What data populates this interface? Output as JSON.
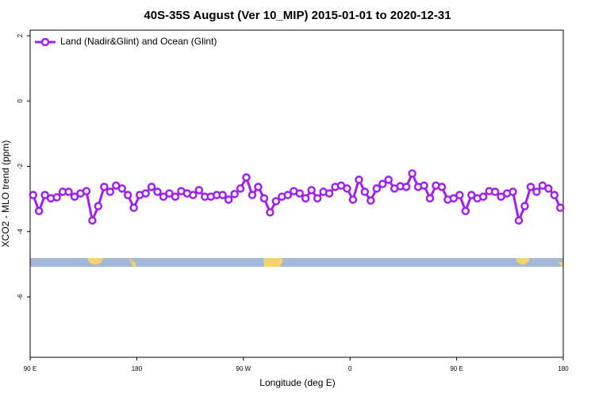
{
  "chart_data": {
    "type": "line",
    "title": "40S-35S August (Ver 10_MIP)   2015-01-01 to 2020-12-31",
    "xlabel": "Longitude (deg E)",
    "ylabel": "XCO2 - MLO trend (ppm)",
    "x": [
      92.5,
      97.5,
      102.5,
      107.5,
      112.5,
      117.5,
      122.5,
      127.5,
      132.5,
      137.5,
      142.5,
      147.5,
      152.5,
      157.5,
      162.5,
      167.5,
      172.5,
      177.5,
      182.5,
      187.5,
      192.5,
      197.5,
      202.5,
      207.5,
      212.5,
      217.5,
      222.5,
      227.5,
      232.5,
      237.5,
      242.5,
      247.5,
      252.5,
      257.5,
      262.5,
      267.5,
      272.5,
      277.5,
      282.5,
      287.5,
      292.5,
      297.5,
      302.5,
      307.5,
      312.5,
      317.5,
      322.5,
      327.5,
      332.5,
      337.5,
      342.5,
      347.5,
      352.5,
      357.5,
      362.5,
      367.5,
      372.5,
      377.5,
      382.5,
      387.5,
      392.5,
      397.5,
      402.5,
      407.5,
      412.5,
      417.5,
      422.5,
      427.5,
      432.5,
      437.5,
      442.5,
      447.5,
      452.5,
      457.5,
      462.5,
      467.5,
      472.5,
      477.5,
      482.5,
      487.5,
      492.5,
      497.5,
      502.5,
      507.5,
      512.5,
      517.5,
      522.5,
      527.5,
      532.5,
      537.5
    ],
    "series": [
      {
        "name": "Land (Nadir&Glint) and Ocean (Glint)",
        "color": "#a020f0",
        "values": [
          -2.88,
          -3.37,
          -2.88,
          -2.98,
          -2.95,
          -2.78,
          -2.78,
          -2.93,
          -2.83,
          -2.76,
          -3.66,
          -3.22,
          -2.63,
          -2.78,
          -2.59,
          -2.68,
          -2.88,
          -3.27,
          -2.88,
          -2.83,
          -2.63,
          -2.78,
          -2.93,
          -2.83,
          -2.93,
          -2.76,
          -2.83,
          -2.88,
          -2.73,
          -2.93,
          -2.93,
          -2.88,
          -2.88,
          -3.02,
          -2.85,
          -2.68,
          -2.34,
          -2.88,
          -2.63,
          -2.98,
          -3.41,
          -3.07,
          -2.93,
          -2.88,
          -2.76,
          -2.83,
          -2.98,
          -2.73,
          -2.98,
          -2.78,
          -2.83,
          -2.63,
          -2.59,
          -2.68,
          -3.02,
          -2.41,
          -2.78,
          -3.05,
          -2.68,
          -2.54,
          -2.41,
          -2.68,
          -2.61,
          -2.63,
          -2.22,
          -2.63,
          -2.59,
          -2.98,
          -2.59,
          -2.63,
          -3.02,
          -2.98,
          -2.88,
          -3.37,
          -2.88,
          -2.98,
          -2.93,
          -2.76,
          -2.78,
          -2.93,
          -2.83,
          -2.78,
          -3.66,
          -3.22,
          -2.63,
          -2.78,
          -2.59,
          -2.68,
          -2.88,
          -3.27
        ]
      }
    ],
    "xlim": [
      90,
      540
    ],
    "xticks": [
      {
        "value": 90,
        "label": "90 E"
      },
      180,
      {
        "value": 270,
        "label": "90 W"
      },
      {
        "value": 360,
        "label": "0"
      },
      {
        "value": 450,
        "label": "90 E"
      },
      {
        "value": 540,
        "label": "180"
      }
    ],
    "ylim": [
      -7.85,
      2.17
    ],
    "yticks": [
      2,
      0,
      -2,
      -4,
      -6
    ],
    "legend": "top-left"
  }
}
